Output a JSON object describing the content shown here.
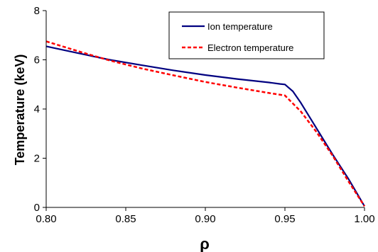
{
  "chart_data": {
    "type": "line",
    "title": "",
    "xlabel": "ρ",
    "ylabel": "Temperature (keV)",
    "xlim": [
      0.8,
      1.0
    ],
    "ylim": [
      0,
      8
    ],
    "x_ticks": [
      "0.80",
      "0.85",
      "0.90",
      "0.95",
      "1.00"
    ],
    "y_ticks": [
      "0",
      "2",
      "4",
      "6",
      "8"
    ],
    "grid": false,
    "legend_position": "top-right",
    "series": [
      {
        "name": "Ion temperature",
        "color": "#000080",
        "style": "solid",
        "x": [
          0.8,
          0.82,
          0.84,
          0.86,
          0.88,
          0.9,
          0.92,
          0.94,
          0.947,
          0.95,
          0.955,
          0.96,
          0.97,
          0.98,
          0.99,
          1.0
        ],
        "y": [
          6.55,
          6.27,
          6.0,
          5.78,
          5.57,
          5.38,
          5.22,
          5.08,
          5.02,
          5.0,
          4.72,
          4.25,
          3.2,
          2.15,
          1.15,
          0.05
        ]
      },
      {
        "name": "Electron temperature",
        "color": "#ff0000",
        "style": "dashed",
        "x": [
          0.8,
          0.82,
          0.84,
          0.86,
          0.88,
          0.9,
          0.92,
          0.94,
          0.95,
          0.96,
          0.97,
          0.98,
          0.99,
          1.0
        ],
        "y": [
          6.75,
          6.35,
          5.97,
          5.65,
          5.37,
          5.1,
          4.87,
          4.65,
          4.55,
          3.9,
          3.05,
          2.1,
          1.05,
          0.05
        ]
      }
    ]
  }
}
